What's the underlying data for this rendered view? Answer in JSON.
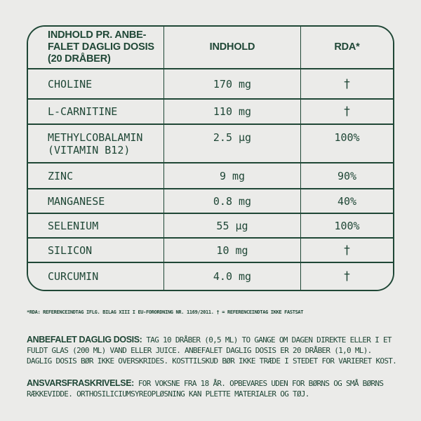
{
  "page": {
    "background_color": "#ebebe9",
    "accent_color": "#1f4736"
  },
  "table": {
    "header": {
      "col1": "INDHOLD PR. ANBE-\nFALET DAGLIG DOSIS\n(20 DRÅBER)",
      "col2": "INDHOLD",
      "col3": "RDA*"
    },
    "rows": [
      {
        "name": "CHOLINE",
        "amount": "170 mg",
        "rda": "†"
      },
      {
        "name": "L-CARNITINE",
        "amount": "110 mg",
        "rda": "†"
      },
      {
        "name": "METHYLCOBALAMIN\n(VITAMIN B12)",
        "amount": "2.5 µg",
        "rda": "100%"
      },
      {
        "name": "ZINC",
        "amount": "9 mg",
        "rda": "90%"
      },
      {
        "name": "MANGANESE",
        "amount": "0.8 mg",
        "rda": "40%"
      },
      {
        "name": "SELENIUM",
        "amount": "55 µg",
        "rda": "100%"
      },
      {
        "name": "SILICON",
        "amount": "10 mg",
        "rda": "†"
      },
      {
        "name": "CURCUMIN",
        "amount": "4.0 mg",
        "rda": "†"
      }
    ]
  },
  "footnote": "*RDA: REFERENCEINDTAG IFLG. BILAG XIII I EU-FORORDNING NR. 1169/2011. † = REFERENCEINDTAG IKKE FASTSAT",
  "dosage": {
    "label": "ANBEFALET DAGLIG DOSIS:",
    "text": "TAG 10 DRÅBER (0,5 ML) TO GANGE OM DAGEN DIREKTE ELLER I ET\nFULDT GLAS (200 ML) VAND ELLER JUICE. ANBEFALET DAGLIG DOSIS ER 20 DRÅBER (1,0 ML).\nDAGLIG DOSIS BØR IKKE OVERSKRIDES. KOSTTILSKUD BØR IKKE TRÆDE I STEDET FOR VARIERET KOST."
  },
  "disclaimer": {
    "label": "ANSVARSFRASKRIVELSE:",
    "text": "FOR VOKSNE FRA 18 ÅR. OPBEVARES UDEN FOR BØRNS OG SMÅ BØRNS\nRÆKKEVIDDE. ORTHOSILICIUMSYREOPLØSNING KAN PLETTE MATERIALER OG TØJ."
  }
}
